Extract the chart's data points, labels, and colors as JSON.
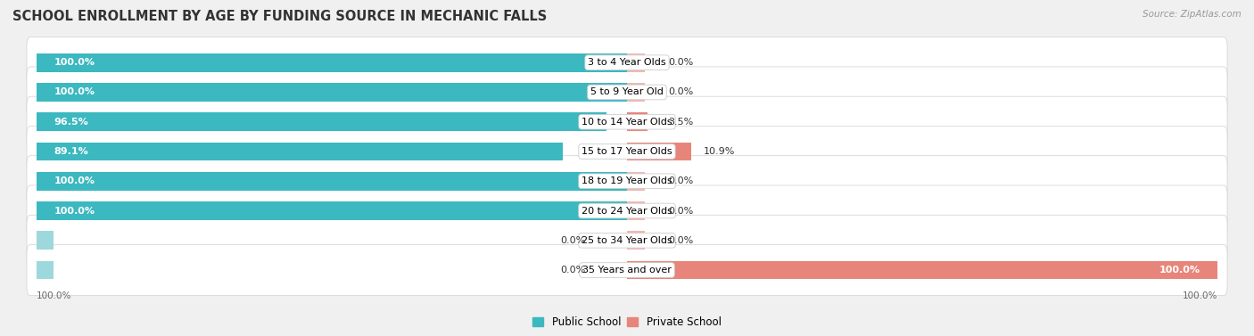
{
  "title": "SCHOOL ENROLLMENT BY AGE BY FUNDING SOURCE IN MECHANIC FALLS",
  "source": "Source: ZipAtlas.com",
  "categories": [
    "3 to 4 Year Olds",
    "5 to 9 Year Old",
    "10 to 14 Year Olds",
    "15 to 17 Year Olds",
    "18 to 19 Year Olds",
    "20 to 24 Year Olds",
    "25 to 34 Year Olds",
    "35 Years and over"
  ],
  "public_values": [
    100.0,
    100.0,
    96.5,
    89.1,
    100.0,
    100.0,
    0.0,
    0.0
  ],
  "private_values": [
    0.0,
    0.0,
    3.5,
    10.9,
    0.0,
    0.0,
    0.0,
    100.0
  ],
  "public_color": "#3cb8c0",
  "private_color": "#e8857a",
  "public_color_light": "#9dd8dc",
  "private_color_light": "#f0b8b0",
  "bar_height": 0.62,
  "background_color": "#f0f0f0",
  "row_background": "#ffffff",
  "title_fontsize": 10.5,
  "label_fontsize": 8.0,
  "source_fontsize": 7.5,
  "legend_fontsize": 8.5,
  "x_left_label": "100.0%",
  "x_right_label": "100.0%"
}
